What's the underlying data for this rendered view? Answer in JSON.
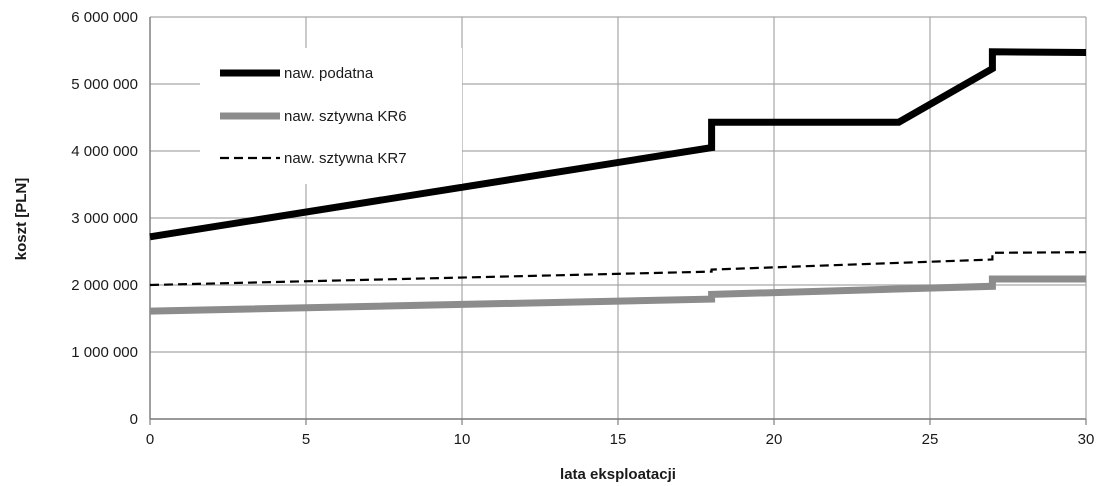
{
  "chart_data": {
    "type": "line",
    "xlabel": "lata eksploatacji",
    "ylabel": "koszt [PLN]",
    "xlim": [
      0,
      30
    ],
    "ylim": [
      0,
      6000000
    ],
    "x_ticks": [
      0,
      5,
      10,
      15,
      20,
      25,
      30
    ],
    "x_tick_labels": [
      "0",
      "5",
      "10",
      "15",
      "20",
      "25",
      "30"
    ],
    "y_ticks": [
      0,
      1000000,
      2000000,
      3000000,
      4000000,
      5000000,
      6000000
    ],
    "y_tick_labels": [
      "0",
      "1 000 000",
      "2 000 000",
      "3 000 000",
      "4 000 000",
      "5 000 000",
      "6 000 000"
    ],
    "grid": true,
    "legend_position": "top-left",
    "series": [
      {
        "name": "naw. podatna",
        "color": "#000000",
        "style": "solid-thick",
        "points": [
          [
            0,
            2720000
          ],
          [
            18,
            4050000
          ],
          [
            18,
            4430000
          ],
          [
            24,
            4430000
          ],
          [
            27,
            5230000
          ],
          [
            27,
            5480000
          ],
          [
            30,
            5470000
          ]
        ]
      },
      {
        "name": "naw. sztywna KR6",
        "color": "#8c8c8c",
        "style": "solid-thick",
        "points": [
          [
            0,
            1610000
          ],
          [
            18,
            1790000
          ],
          [
            18,
            1860000
          ],
          [
            27,
            1980000
          ],
          [
            27,
            2090000
          ],
          [
            30,
            2090000
          ]
        ]
      },
      {
        "name": "naw. sztywna KR7",
        "color": "#000000",
        "style": "dashed",
        "points": [
          [
            0,
            2000000
          ],
          [
            18,
            2200000
          ],
          [
            18,
            2230000
          ],
          [
            27,
            2380000
          ],
          [
            27,
            2480000
          ],
          [
            30,
            2490000
          ]
        ]
      }
    ]
  }
}
